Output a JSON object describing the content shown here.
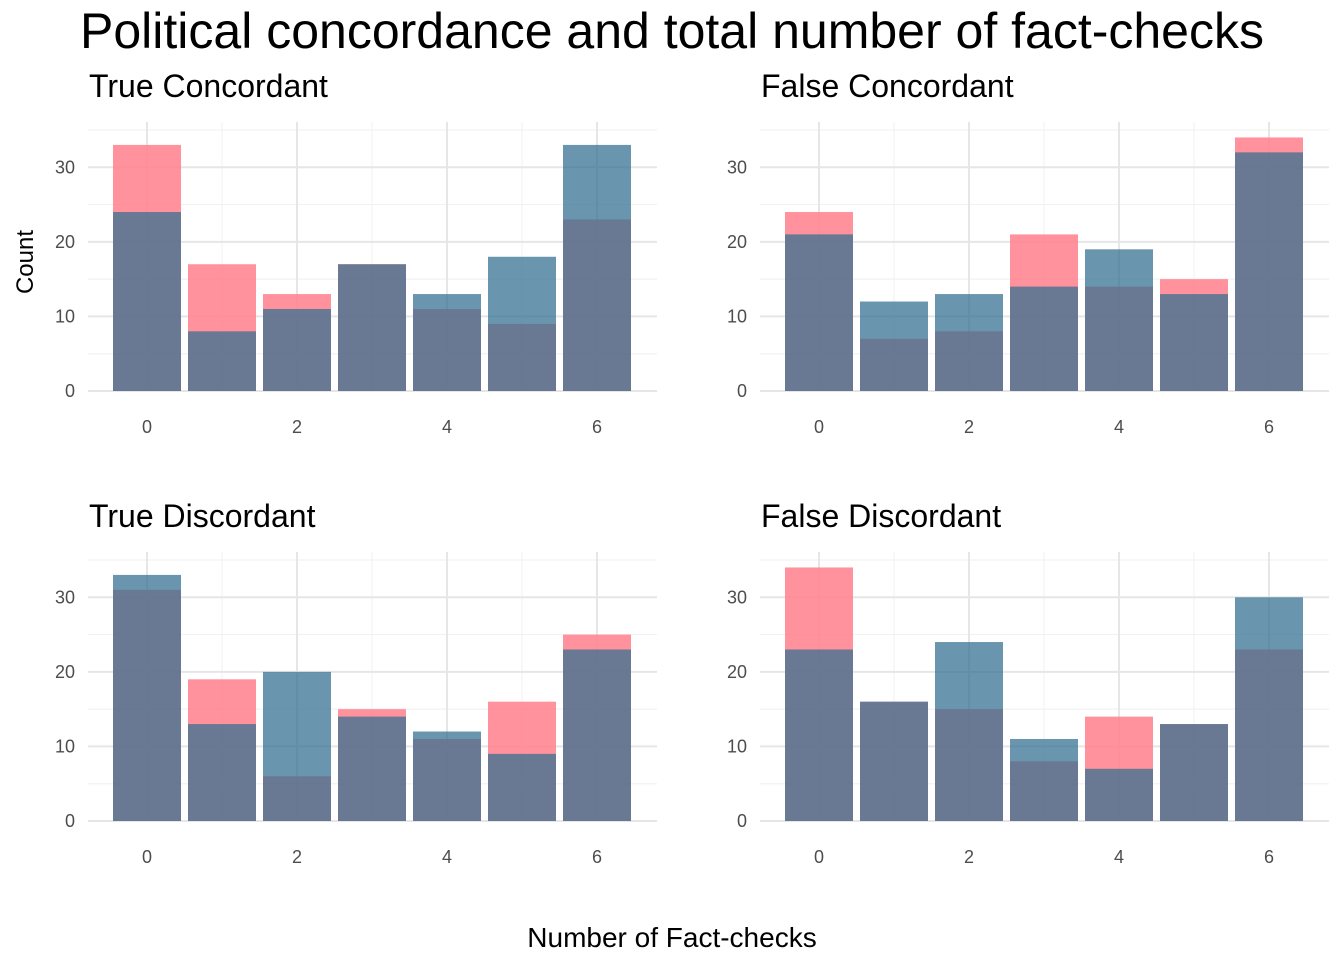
{
  "title": "Political concordance and total number of fact-checks",
  "ylabel": "Count",
  "xlabel": "Number of Fact-checks",
  "colors": {
    "series_a": "#d95f6e",
    "series_b": "#2f6e8f",
    "overlap": "#9b4f68",
    "grid_major": "#e6e6e6",
    "grid_minor": "#f2f2f2"
  },
  "chart_data": [
    {
      "type": "bar",
      "title": "True Concordant",
      "x": [
        0,
        1,
        2,
        3,
        4,
        5,
        6
      ],
      "series": [
        {
          "color": "#ff7f8c",
          "values": [
            33,
            17,
            13,
            17,
            11,
            9,
            23
          ]
        },
        {
          "color": "#2f6e8f",
          "values": [
            24,
            8,
            11,
            17,
            13,
            18,
            33
          ]
        }
      ],
      "xticks": [
        "0",
        "2",
        "4",
        "6"
      ],
      "yticks": [
        "0",
        "10",
        "20",
        "30"
      ],
      "ylim": [
        0,
        35
      ]
    },
    {
      "type": "bar",
      "title": "False Concordant",
      "x": [
        0,
        1,
        2,
        3,
        4,
        5,
        6
      ],
      "series": [
        {
          "color": "#ff7f8c",
          "values": [
            24,
            7,
            8,
            21,
            14,
            15,
            34
          ]
        },
        {
          "color": "#2f6e8f",
          "values": [
            21,
            12,
            13,
            14,
            19,
            13,
            32
          ]
        }
      ],
      "xticks": [
        "0",
        "2",
        "4",
        "6"
      ],
      "yticks": [
        "0",
        "10",
        "20",
        "30"
      ],
      "ylim": [
        0,
        35
      ]
    },
    {
      "type": "bar",
      "title": "True Discordant",
      "x": [
        0,
        1,
        2,
        3,
        4,
        5,
        6
      ],
      "series": [
        {
          "color": "#ff7f8c",
          "values": [
            31,
            19,
            6,
            15,
            11,
            16,
            25
          ]
        },
        {
          "color": "#2f6e8f",
          "values": [
            33,
            13,
            20,
            14,
            12,
            9,
            23
          ]
        }
      ],
      "xticks": [
        "0",
        "2",
        "4",
        "6"
      ],
      "yticks": [
        "0",
        "10",
        "20",
        "30"
      ],
      "ylim": [
        0,
        35
      ]
    },
    {
      "type": "bar",
      "title": "False Discordant",
      "x": [
        0,
        1,
        2,
        3,
        4,
        5,
        6
      ],
      "series": [
        {
          "color": "#ff7f8c",
          "values": [
            34,
            16,
            15,
            8,
            14,
            13,
            23
          ]
        },
        {
          "color": "#2f6e8f",
          "values": [
            23,
            16,
            24,
            11,
            7,
            13,
            30
          ]
        }
      ],
      "xticks": [
        "0",
        "2",
        "4",
        "6"
      ],
      "yticks": [
        "0",
        "10",
        "20",
        "30"
      ],
      "ylim": [
        0,
        35
      ]
    }
  ]
}
